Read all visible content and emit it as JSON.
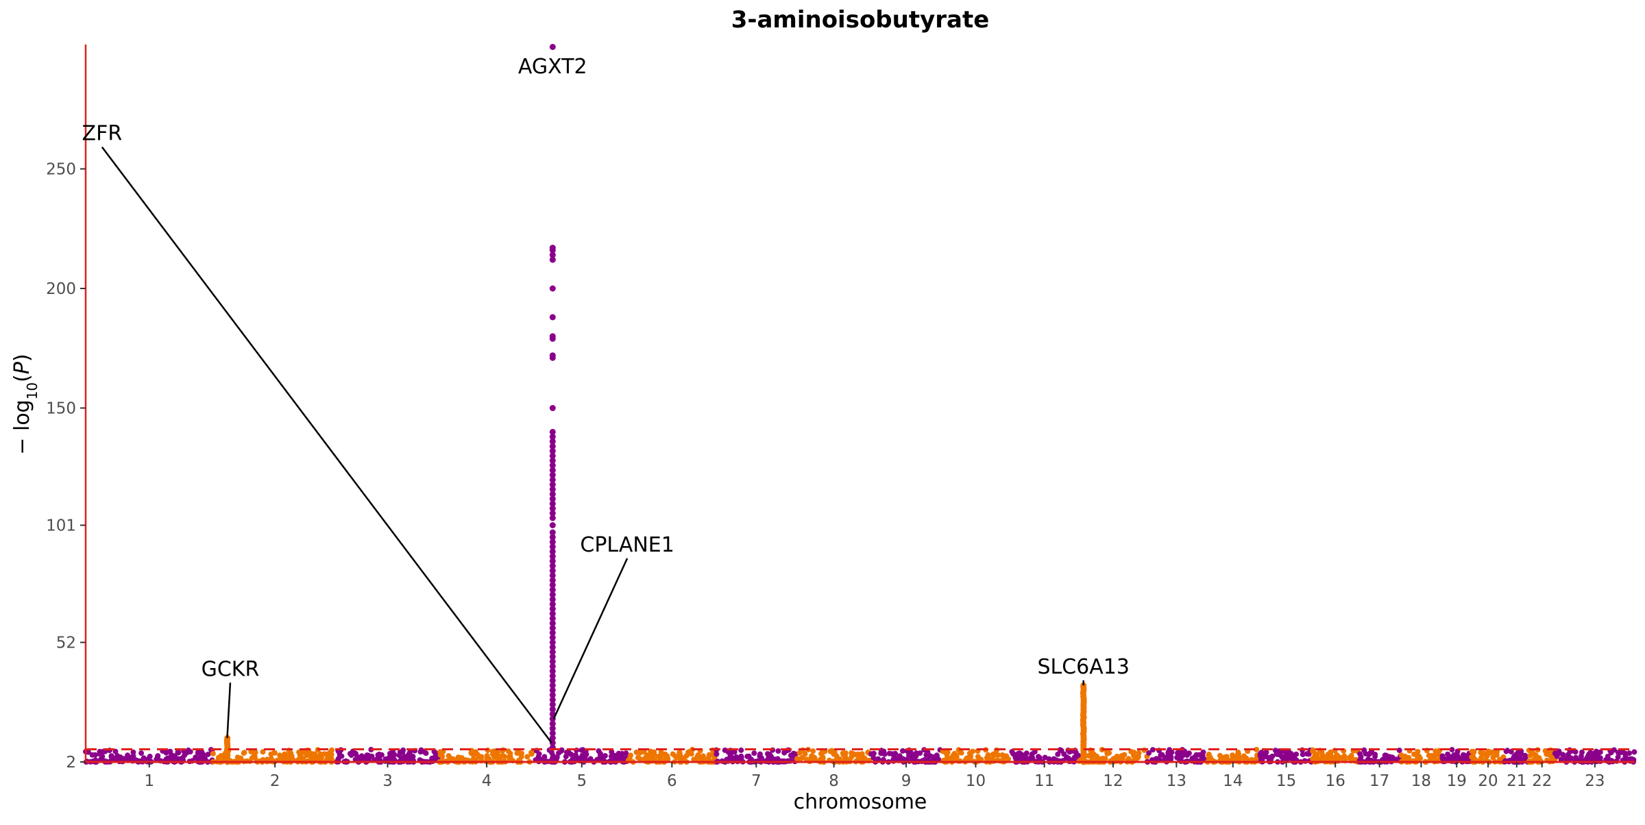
{
  "chart_data": {
    "type": "scatter",
    "title": "3-aminoisobutyrate",
    "xlabel": "chromosome",
    "ylabel_main": "− log",
    "ylabel_sub": "10",
    "ylabel_paren_open": "(",
    "ylabel_var": "P",
    "ylabel_paren_close": ")",
    "ylim": [
      2,
      302
    ],
    "yticks": [
      "2",
      "52",
      "101",
      "150",
      "200",
      "250"
    ],
    "y_scale": "linear (compressed labels)",
    "significance_threshold": 7.3,
    "grid": false,
    "legend": "none",
    "colors": {
      "odd_chromosomes": "#8b008b",
      "even_chromosomes": "#ee7600",
      "axis_line": "#e0201a",
      "threshold_line": "#e0201a",
      "connector": "#000000"
    },
    "chromosomes": [
      {
        "label": "1",
        "start": 0,
        "end": 249
      },
      {
        "label": "2",
        "start": 249,
        "end": 492
      },
      {
        "label": "3",
        "start": 492,
        "end": 690
      },
      {
        "label": "4",
        "start": 690,
        "end": 880
      },
      {
        "label": "5",
        "start": 880,
        "end": 1062
      },
      {
        "label": "6",
        "start": 1062,
        "end": 1233
      },
      {
        "label": "7",
        "start": 1233,
        "end": 1392
      },
      {
        "label": "8",
        "start": 1392,
        "end": 1537
      },
      {
        "label": "9",
        "start": 1537,
        "end": 1675
      },
      {
        "label": "10",
        "start": 1675,
        "end": 1809
      },
      {
        "label": "11",
        "start": 1809,
        "end": 1944
      },
      {
        "label": "12",
        "start": 1944,
        "end": 2078
      },
      {
        "label": "13",
        "start": 2078,
        "end": 2192
      },
      {
        "label": "14",
        "start": 2192,
        "end": 2299
      },
      {
        "label": "15",
        "start": 2299,
        "end": 2401
      },
      {
        "label": "16",
        "start": 2401,
        "end": 2491
      },
      {
        "label": "17",
        "start": 2491,
        "end": 2574
      },
      {
        "label": "18",
        "start": 2574,
        "end": 2654
      },
      {
        "label": "19",
        "start": 2654,
        "end": 2713
      },
      {
        "label": "20",
        "start": 2713,
        "end": 2777
      },
      {
        "label": "21",
        "start": 2777,
        "end": 2825
      },
      {
        "label": "22",
        "start": 2825,
        "end": 2876
      },
      {
        "label": "23",
        "start": 2876,
        "end": 3032
      }
    ],
    "peaks": [
      {
        "gene": "GCKR",
        "chr": "2",
        "x": 277,
        "max_y": 12
      },
      {
        "gene": "AGXT2",
        "chr": "5",
        "x": 914,
        "max_y": 301
      },
      {
        "gene": "SLC6A13",
        "chr": "12",
        "x": 1953,
        "max_y": 34
      }
    ],
    "agxt2_points": [
      301,
      217,
      216,
      214,
      212,
      200,
      188,
      180,
      179,
      172,
      171,
      150,
      140,
      138,
      136,
      134,
      132,
      130,
      128,
      126,
      124,
      122,
      120,
      118,
      116,
      114,
      112,
      110,
      108,
      106,
      104,
      101,
      98,
      96,
      94,
      92,
      90,
      88,
      86,
      84,
      82,
      80,
      78,
      76,
      74,
      72,
      70,
      68,
      66,
      64,
      62,
      60,
      58,
      56,
      54,
      52,
      50,
      48,
      46,
      44,
      42,
      40,
      38,
      36,
      34,
      32,
      30,
      28,
      26,
      24,
      22,
      20,
      18,
      16,
      14,
      12,
      10,
      8
    ],
    "annotations": [
      {
        "gene": "AGXT2",
        "label_x": 914,
        "label_y": 290,
        "point_x": 914,
        "point_y": 301
      },
      {
        "gene": "ZFR",
        "label_x": 32,
        "label_y": 262,
        "point_x": 912,
        "point_y": 10
      },
      {
        "gene": "CPLANE1",
        "label_x": 1060,
        "label_y": 90,
        "point_x": 916,
        "point_y": 20
      },
      {
        "gene": "GCKR",
        "label_x": 283,
        "label_y": 38,
        "point_x": 277,
        "point_y": 12
      },
      {
        "gene": "SLC6A13",
        "label_x": 1953,
        "label_y": 39,
        "point_x": 1953,
        "point_y": 34
      }
    ]
  }
}
